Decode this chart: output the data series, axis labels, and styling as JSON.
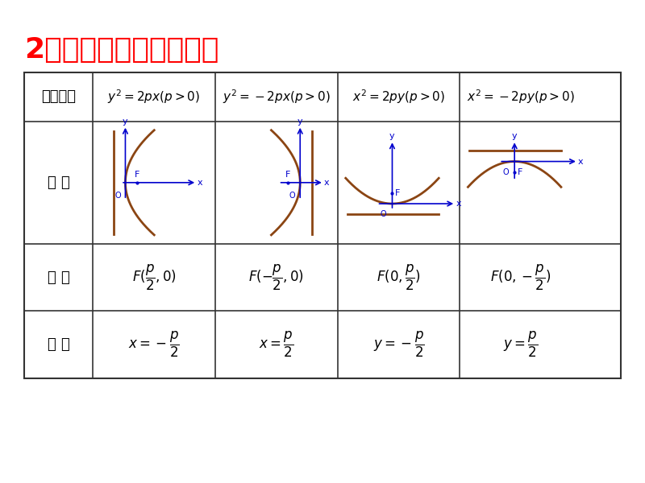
{
  "title": "2、抛物线的标准方程：",
  "title_color": "#FF0000",
  "bg_color": "#FFFFFF",
  "table_border_color": "#333333",
  "parabola_color": "#8B4513",
  "axis_color": "#0000CD",
  "text_color": "#000000",
  "row_labels": [
    "标准方程",
    "图 形",
    "焦 点",
    "准 线"
  ],
  "equations": [
    "y^2 = 2px(p > 0)",
    "y^2 = -2px(p > 0)",
    "x^2 = 2py(p > 0)",
    "x^2 = -2py(p > 0)"
  ],
  "foci": [
    "F(\\frac{p}{2}, 0)",
    "F(-\\frac{p}{2}, 0)",
    "F(0, \\frac{p}{2})",
    "F(0, -\\frac{p}{2})"
  ],
  "directrices": [
    "x = -\\frac{p}{2}",
    "x = \\frac{p}{2}",
    "y = -\\frac{p}{2}",
    "y = \\frac{p}{2}"
  ]
}
